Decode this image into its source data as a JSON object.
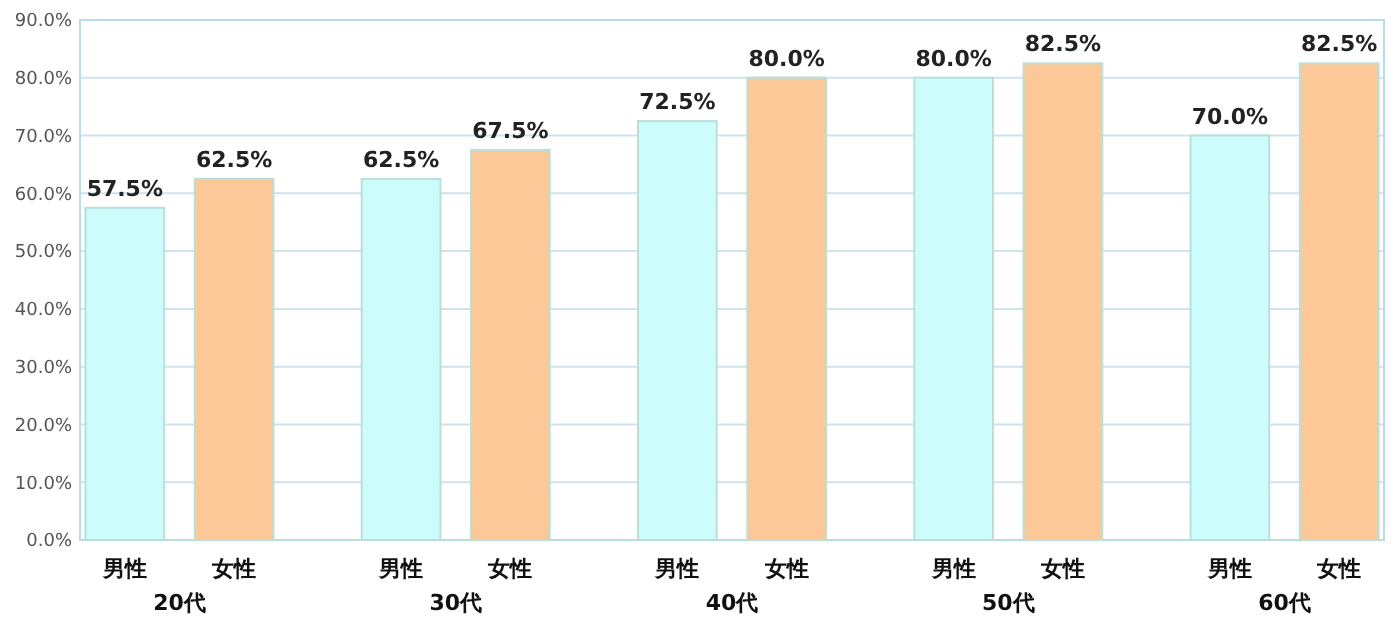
{
  "chart_data": {
    "type": "bar",
    "categories": [
      "20代",
      "30代",
      "40代",
      "50代",
      "60代"
    ],
    "series": [
      {
        "name": "男性",
        "color": "#ccfcfc",
        "values": [
          57.5,
          62.5,
          72.5,
          80.0,
          70.0
        ],
        "value_labels": [
          "57.5%",
          "62.5%",
          "72.5%",
          "80.0%",
          "70.0%"
        ]
      },
      {
        "name": "女性",
        "color": "#fcc898",
        "values": [
          62.5,
          67.5,
          80.0,
          82.5,
          82.5
        ],
        "value_labels": [
          "62.5%",
          "67.5%",
          "80.0%",
          "82.5%",
          "82.5%"
        ]
      }
    ],
    "ylim": [
      0,
      90
    ],
    "yticks": [
      {
        "value": 0,
        "label": "0.0%"
      },
      {
        "value": 10,
        "label": "10.0%"
      },
      {
        "value": 20,
        "label": "20.0%"
      },
      {
        "value": 30,
        "label": "30.0%"
      },
      {
        "value": 40,
        "label": "40.0%"
      },
      {
        "value": 50,
        "label": "50.0%"
      },
      {
        "value": 60,
        "label": "60.0%"
      },
      {
        "value": 70,
        "label": "70.0%"
      },
      {
        "value": 80,
        "label": "80.0%"
      },
      {
        "value": 90,
        "label": "90.0%"
      }
    ],
    "grid": "y"
  }
}
